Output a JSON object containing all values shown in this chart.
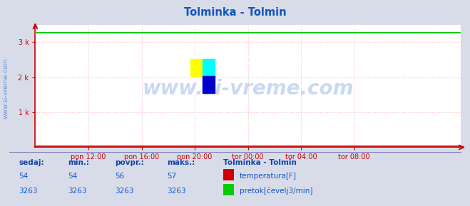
{
  "title": "Tolminka - Tolmin",
  "title_color": "#1155bb",
  "bg_color": "#d8dce8",
  "plot_bg_color": "#ffffff",
  "fig_bg_color": "#d8dce8",
  "grid_color": "#ffbbbb",
  "grid_linestyle": ":",
  "x_tick_labels": [
    "pon 12:00",
    "pon 16:00",
    "pon 20:00",
    "tor 00:00",
    "tor 04:00",
    "tor 08:00"
  ],
  "x_tick_positions": [
    0.125,
    0.25,
    0.375,
    0.5,
    0.625,
    0.75
  ],
  "ylim": [
    0,
    3500
  ],
  "yticks": [
    1000,
    2000,
    3000
  ],
  "ytick_labels": [
    "1 k",
    "2 k",
    "3 k"
  ],
  "temp_value": 54,
  "temp_min": 54,
  "temp_avg": 56,
  "temp_max": 57,
  "flow_value": 3263,
  "flow_min": 3263,
  "flow_avg": 3263,
  "flow_max": 3263,
  "temp_color": "#cc0000",
  "flow_color": "#00cc00",
  "axis_color": "#cc0000",
  "watermark_color": "#1155cc",
  "table_header_color": "#1144aa",
  "table_value_color": "#1155cc",
  "legend_title": "Tolminka - Tolmin",
  "legend_title_color": "#1144aa",
  "sidebar_text": "www.si-vreme.com",
  "sidebar_color": "#1155cc",
  "separator_color": "#8888bb",
  "logo_yellow": "#ffff00",
  "logo_cyan": "#00ffff",
  "logo_blue": "#0000cc"
}
